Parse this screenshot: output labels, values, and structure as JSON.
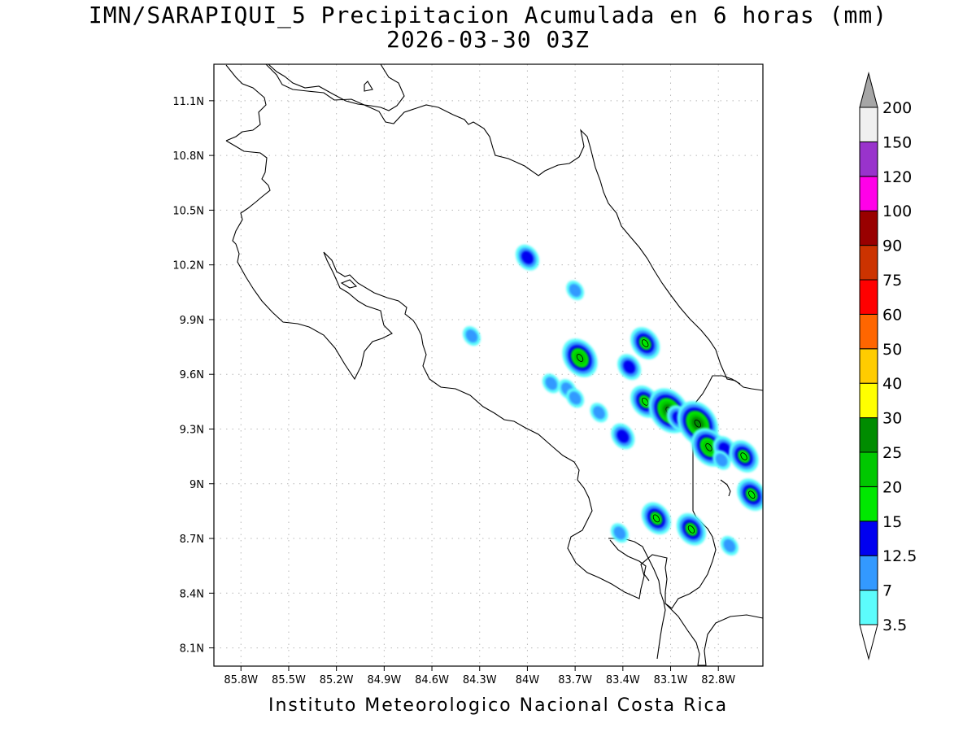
{
  "title_line1": "IMN/SARAPIQUI_5 Precipitacion Acumulada en 6 horas (mm)",
  "title_line2": "2026-03-30 03Z",
  "footer": "Instituto Meteorologico Nacional Costa Rica",
  "map": {
    "lon_min": -85.97,
    "lon_max": -82.52,
    "lat_min": 8.0,
    "lat_max": 11.3,
    "lon_ticks": [
      {
        "value": -85.8,
        "label": "85.8W"
      },
      {
        "value": -85.5,
        "label": "85.5W"
      },
      {
        "value": -85.2,
        "label": "85.2W"
      },
      {
        "value": -84.9,
        "label": "84.9W"
      },
      {
        "value": -84.6,
        "label": "84.6W"
      },
      {
        "value": -84.3,
        "label": "84.3W"
      },
      {
        "value": -84.0,
        "label": "84W"
      },
      {
        "value": -83.7,
        "label": "83.7W"
      },
      {
        "value": -83.4,
        "label": "83.4W"
      },
      {
        "value": -83.1,
        "label": "83.1W"
      },
      {
        "value": -82.8,
        "label": "82.8W"
      }
    ],
    "lat_ticks": [
      {
        "value": 8.1,
        "label": "8.1N"
      },
      {
        "value": 8.4,
        "label": "8.4N"
      },
      {
        "value": 8.7,
        "label": "8.7N"
      },
      {
        "value": 9.0,
        "label": "9N"
      },
      {
        "value": 9.3,
        "label": "9.3N"
      },
      {
        "value": 9.6,
        "label": "9.6N"
      },
      {
        "value": 9.9,
        "label": "9.9N"
      },
      {
        "value": 10.2,
        "label": "10.2N"
      },
      {
        "value": 10.5,
        "label": "10.5N"
      },
      {
        "value": 10.8,
        "label": "10.8N"
      },
      {
        "value": 11.1,
        "label": "11.1N"
      }
    ],
    "grid": true
  },
  "colorbar": {
    "levels": [
      "3.5",
      "7",
      "12.5",
      "15",
      "20",
      "25",
      "30",
      "40",
      "50",
      "60",
      "75",
      "90",
      "100",
      "120",
      "150",
      "200"
    ],
    "colors": [
      "#5cfcfc",
      "#3399ff",
      "#0000f0",
      "#00e800",
      "#00c800",
      "#008c00",
      "#ffff00",
      "#ffcc00",
      "#ff6600",
      "#ff0000",
      "#cc3300",
      "#990000",
      "#ff00e8",
      "#9933cc",
      "#f0f0f0"
    ],
    "top_arrow_color": "#a6a6a6",
    "bottom_arrow_color": "#ffffff"
  },
  "precip_cells": [
    {
      "lon": -84.0,
      "lat": 10.24,
      "level": 2
    },
    {
      "lon": -83.7,
      "lat": 10.06,
      "level": 1
    },
    {
      "lon": -84.35,
      "lat": 9.81,
      "level": 1
    },
    {
      "lon": -83.26,
      "lat": 9.77,
      "level": 3
    },
    {
      "lon": -83.67,
      "lat": 9.69,
      "level": 4
    },
    {
      "lon": -83.36,
      "lat": 9.64,
      "level": 2
    },
    {
      "lon": -83.85,
      "lat": 9.55,
      "level": 1
    },
    {
      "lon": -83.75,
      "lat": 9.52,
      "level": 1
    },
    {
      "lon": -83.7,
      "lat": 9.47,
      "level": 1
    },
    {
      "lon": -83.26,
      "lat": 9.45,
      "level": 3
    },
    {
      "lon": -83.11,
      "lat": 9.4,
      "level": 5
    },
    {
      "lon": -83.05,
      "lat": 9.36,
      "level": 2
    },
    {
      "lon": -82.93,
      "lat": 9.33,
      "level": 5
    },
    {
      "lon": -83.55,
      "lat": 9.39,
      "level": 1
    },
    {
      "lon": -83.4,
      "lat": 9.26,
      "level": 2
    },
    {
      "lon": -82.86,
      "lat": 9.2,
      "level": 4
    },
    {
      "lon": -82.76,
      "lat": 9.19,
      "level": 2
    },
    {
      "lon": -82.78,
      "lat": 9.13,
      "level": 1
    },
    {
      "lon": -82.64,
      "lat": 9.15,
      "level": 3
    },
    {
      "lon": -82.59,
      "lat": 8.94,
      "level": 3
    },
    {
      "lon": -83.19,
      "lat": 8.81,
      "level": 3
    },
    {
      "lon": -82.97,
      "lat": 8.75,
      "level": 3
    },
    {
      "lon": -82.73,
      "lat": 8.66,
      "level": 1
    },
    {
      "lon": -83.42,
      "lat": 8.73,
      "level": 1
    }
  ]
}
